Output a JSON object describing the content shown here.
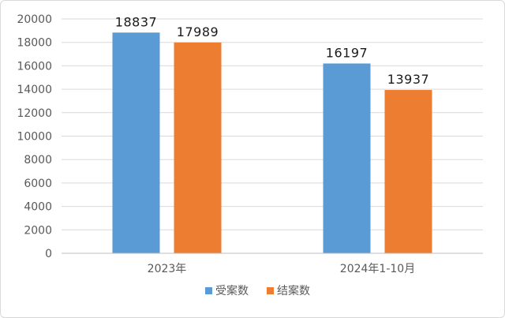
{
  "chart_data": {
    "type": "bar",
    "categories": [
      "2023年",
      "2024年1-10月"
    ],
    "series": [
      {
        "name": "受案数",
        "values": [
          18837,
          16197
        ],
        "color": "#5b9bd5"
      },
      {
        "name": "结案数",
        "values": [
          17989,
          13937
        ],
        "color": "#ed7d31"
      }
    ],
    "ylim": [
      0,
      20000
    ],
    "yticks": [
      0,
      2000,
      4000,
      6000,
      8000,
      10000,
      12000,
      14000,
      16000,
      18000,
      20000
    ],
    "grid": true,
    "legend": "bottom",
    "data_labels": true
  }
}
